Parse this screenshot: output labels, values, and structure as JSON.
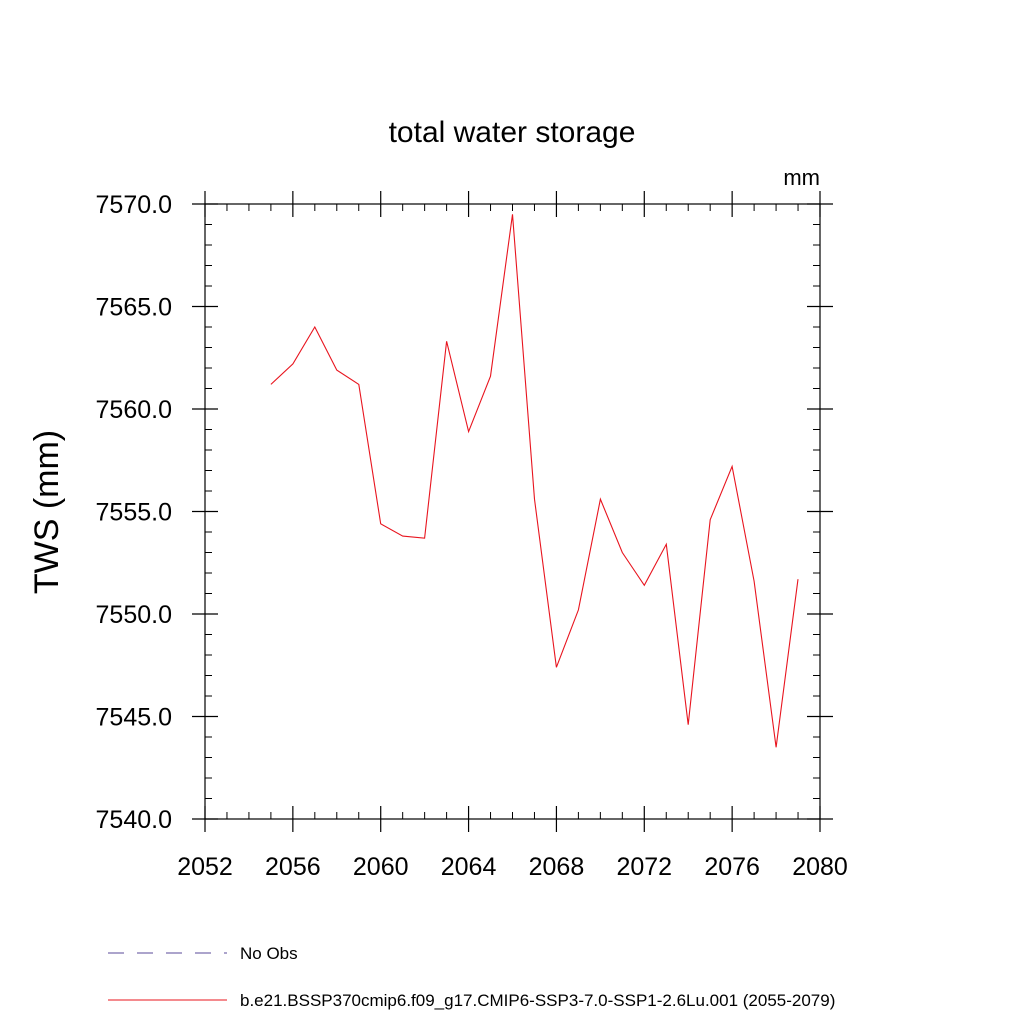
{
  "chart_data": {
    "type": "line",
    "title": "total water storage",
    "units_label": "mm",
    "ylabel": "TWS  (mm)",
    "xlabel": "",
    "xlim": [
      2052,
      2080
    ],
    "ylim": [
      7540.0,
      7570.0
    ],
    "x_ticks": [
      "2052",
      "2056",
      "2060",
      "2064",
      "2068",
      "2072",
      "2076",
      "2080"
    ],
    "y_ticks": [
      "7540.0",
      "7545.0",
      "7550.0",
      "7555.0",
      "7560.0",
      "7565.0",
      "7570.0"
    ],
    "x_tick_values": [
      2052,
      2056,
      2060,
      2064,
      2068,
      2072,
      2076,
      2080
    ],
    "y_tick_values": [
      7540,
      7545,
      7550,
      7555,
      7560,
      7565,
      7570
    ],
    "series": [
      {
        "name": "b.e21.BSSP370cmip6.f09_g17.CMIP6-SSP3-7.0-SSP1-2.6Lu.001 (2055-2079)",
        "color": "#e8141e",
        "x": [
          2055,
          2056,
          2057,
          2058,
          2059,
          2060,
          2061,
          2062,
          2063,
          2064,
          2065,
          2066,
          2067,
          2068,
          2069,
          2070,
          2071,
          2072,
          2073,
          2074,
          2075,
          2076,
          2077,
          2078,
          2079
        ],
        "values": [
          7561.2,
          7562.2,
          7564.0,
          7561.9,
          7561.2,
          7554.4,
          7553.8,
          7553.7,
          7563.3,
          7558.9,
          7561.6,
          7569.5,
          7555.6,
          7547.4,
          7550.2,
          7555.6,
          7553.0,
          7551.4,
          7553.4,
          7544.6,
          7554.6,
          7557.2,
          7551.6,
          7543.5,
          7551.7
        ]
      }
    ],
    "legend": [
      {
        "label": "No Obs",
        "color": "#5a4a9a",
        "style": "dashed"
      },
      {
        "label": "b.e21.BSSP370cmip6.f09_g17.CMIP6-SSP3-7.0-SSP1-2.6Lu.001 (2055-2079)",
        "color": "#e8141e",
        "style": "solid"
      }
    ],
    "legend_position": "bottom",
    "grid": false
  }
}
